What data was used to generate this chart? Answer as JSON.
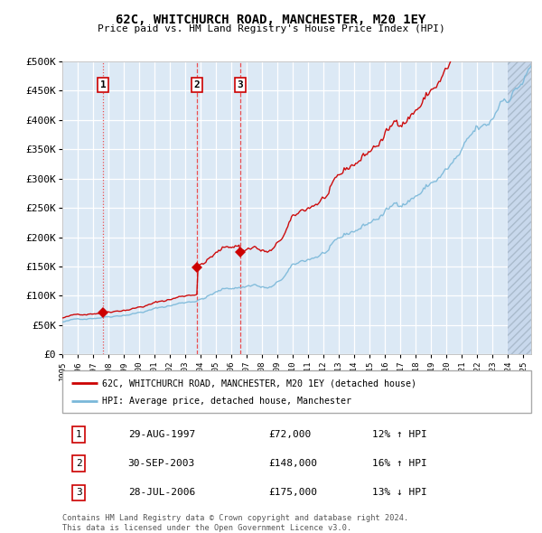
{
  "title": "62C, WHITCHURCH ROAD, MANCHESTER, M20 1EY",
  "subtitle": "Price paid vs. HM Land Registry's House Price Index (HPI)",
  "ylim": [
    0,
    500000
  ],
  "yticks": [
    0,
    50000,
    100000,
    150000,
    200000,
    250000,
    300000,
    350000,
    400000,
    450000,
    500000
  ],
  "ytick_labels": [
    "£0",
    "£50K",
    "£100K",
    "£150K",
    "£200K",
    "£250K",
    "£300K",
    "£350K",
    "£400K",
    "£450K",
    "£500K"
  ],
  "background_color": "#dce9f5",
  "sale_color": "#cc0000",
  "hpi_color": "#7ab8d9",
  "vline_color": "#ee3333",
  "sales": [
    {
      "date": 1997.66,
      "price": 72000,
      "label": "1",
      "vline_style": ":"
    },
    {
      "date": 2003.75,
      "price": 148000,
      "label": "2",
      "vline_style": "--"
    },
    {
      "date": 2006.58,
      "price": 175000,
      "label": "3",
      "vline_style": "--"
    }
  ],
  "legend_sale_label": "62C, WHITCHURCH ROAD, MANCHESTER, M20 1EY (detached house)",
  "legend_hpi_label": "HPI: Average price, detached house, Manchester",
  "table": [
    {
      "num": "1",
      "date": "29-AUG-1997",
      "price": "£72,000",
      "hpi": "12% ↑ HPI"
    },
    {
      "num": "2",
      "date": "30-SEP-2003",
      "price": "£148,000",
      "hpi": "16% ↑ HPI"
    },
    {
      "num": "3",
      "date": "28-JUL-2006",
      "price": "£175,000",
      "hpi": "13% ↓ HPI"
    }
  ],
  "footer": "Contains HM Land Registry data © Crown copyright and database right 2024.\nThis data is licensed under the Open Government Licence v3.0.",
  "hatch_start_year": 2024.0,
  "xlim_start": 1995,
  "xlim_end": 2025.5
}
